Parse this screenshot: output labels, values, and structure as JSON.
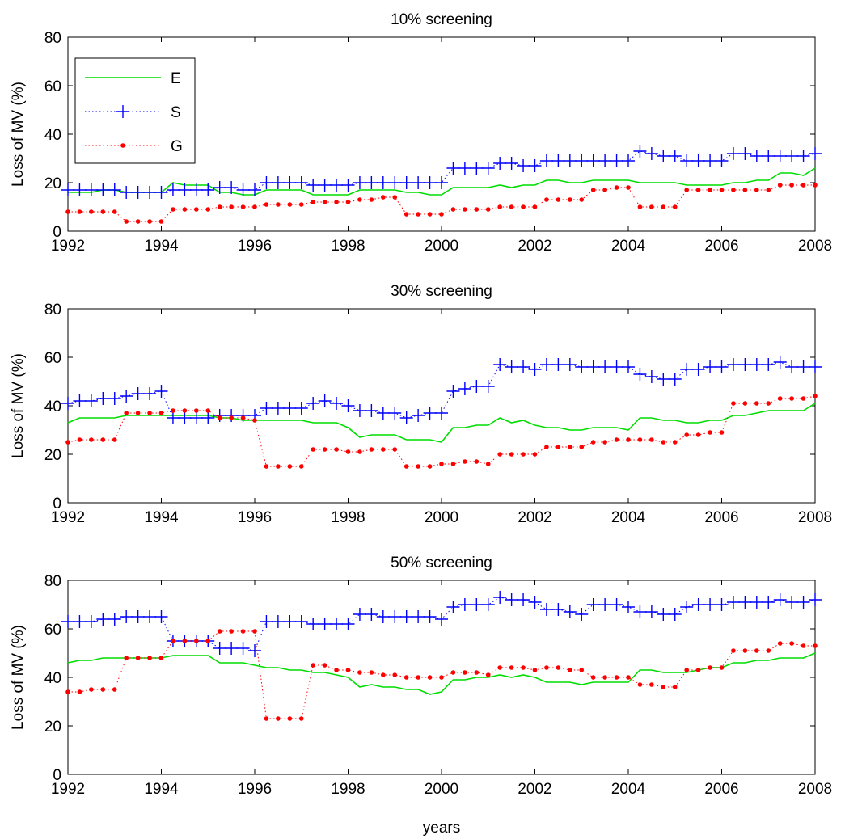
{
  "figure": {
    "xlabel": "years"
  },
  "chart_data": [
    {
      "type": "line",
      "title": "10% screening",
      "xlabel": "",
      "ylabel": "Loss of MV (%)",
      "xlim": [
        1992,
        2008
      ],
      "ylim": [
        0,
        80
      ],
      "xticks": [
        1992,
        1994,
        1996,
        1998,
        2000,
        2002,
        2004,
        2006,
        2008
      ],
      "yticks": [
        0,
        20,
        40,
        60,
        80
      ],
      "grid": false,
      "legend": {
        "placement": "top-left",
        "entries": [
          "E",
          "S",
          "G"
        ]
      },
      "series": [
        {
          "name": "E",
          "color": "#00dd00",
          "style": "solid",
          "values": [
            16,
            16,
            16,
            17,
            17,
            16,
            16,
            16,
            16,
            20,
            19,
            19,
            19,
            16,
            16,
            15,
            15,
            17,
            17,
            17,
            17,
            15,
            15,
            15,
            15,
            17,
            17,
            17,
            17,
            16,
            16,
            15,
            15,
            18,
            18,
            18,
            18,
            19,
            18,
            19,
            19,
            21,
            21,
            20,
            20,
            21,
            21,
            21,
            21,
            20,
            20,
            20,
            20,
            19,
            19,
            19,
            19,
            20,
            20,
            21,
            21,
            24,
            24,
            23,
            26
          ]
        },
        {
          "name": "S",
          "color": "#0000ff",
          "style": "dotted-plus",
          "values": [
            17,
            17,
            17,
            17,
            17,
            16,
            16,
            16,
            16,
            17,
            17,
            17,
            17,
            18,
            18,
            17,
            17,
            20,
            20,
            20,
            20,
            19,
            19,
            19,
            19,
            20,
            20,
            20,
            20,
            20,
            20,
            20,
            20,
            26,
            26,
            26,
            26,
            28,
            28,
            27,
            27,
            29,
            29,
            29,
            29,
            29,
            29,
            29,
            29,
            33,
            32,
            31,
            31,
            29,
            29,
            29,
            29,
            32,
            32,
            31,
            31,
            31,
            31,
            31,
            32
          ]
        },
        {
          "name": "G",
          "color": "#ff0000",
          "style": "dotted-dot",
          "values": [
            8,
            8,
            8,
            8,
            8,
            4,
            4,
            4,
            4,
            9,
            9,
            9,
            9,
            10,
            10,
            10,
            10,
            11,
            11,
            11,
            11,
            12,
            12,
            12,
            12,
            13,
            13,
            14,
            14,
            7,
            7,
            7,
            7,
            9,
            9,
            9,
            9,
            10,
            10,
            10,
            10,
            13,
            13,
            13,
            13,
            17,
            17,
            18,
            18,
            10,
            10,
            10,
            10,
            17,
            17,
            17,
            17,
            17,
            17,
            17,
            17,
            19,
            19,
            19,
            19
          ]
        }
      ]
    },
    {
      "type": "line",
      "title": "30% screening",
      "xlabel": "",
      "ylabel": "Loss of MV (%)",
      "xlim": [
        1992,
        2008
      ],
      "ylim": [
        0,
        80
      ],
      "xticks": [
        1992,
        1994,
        1996,
        1998,
        2000,
        2002,
        2004,
        2006,
        2008
      ],
      "yticks": [
        0,
        20,
        40,
        60,
        80
      ],
      "grid": false,
      "series": [
        {
          "name": "E",
          "color": "#00dd00",
          "style": "solid",
          "values": [
            33,
            35,
            35,
            35,
            35,
            36,
            36,
            36,
            36,
            36,
            36,
            36,
            36,
            35,
            35,
            34,
            34,
            34,
            34,
            34,
            34,
            33,
            33,
            33,
            31,
            27,
            28,
            28,
            28,
            26,
            26,
            26,
            25,
            31,
            31,
            32,
            32,
            35,
            33,
            34,
            32,
            31,
            31,
            30,
            30,
            31,
            31,
            31,
            30,
            35,
            35,
            34,
            34,
            33,
            33,
            34,
            34,
            36,
            36,
            37,
            38,
            38,
            38,
            38,
            41
          ]
        },
        {
          "name": "S",
          "color": "#0000ff",
          "style": "dotted-plus",
          "values": [
            41,
            42,
            42,
            43,
            43,
            44,
            45,
            45,
            46,
            35,
            35,
            35,
            35,
            36,
            36,
            36,
            36,
            39,
            39,
            39,
            39,
            41,
            42,
            41,
            40,
            38,
            38,
            37,
            37,
            35,
            36,
            37,
            37,
            46,
            47,
            48,
            48,
            57,
            56,
            56,
            55,
            57,
            57,
            57,
            56,
            56,
            56,
            56,
            56,
            53,
            52,
            51,
            51,
            55,
            55,
            56,
            56,
            57,
            57,
            57,
            57,
            58,
            56,
            56,
            56
          ]
        },
        {
          "name": "G",
          "color": "#ff0000",
          "style": "dotted-dot",
          "values": [
            25,
            26,
            26,
            26,
            26,
            37,
            37,
            37,
            37,
            38,
            38,
            38,
            38,
            35,
            35,
            35,
            34,
            15,
            15,
            15,
            15,
            22,
            22,
            22,
            21,
            21,
            22,
            22,
            22,
            15,
            15,
            15,
            16,
            16,
            17,
            17,
            16,
            20,
            20,
            20,
            20,
            23,
            23,
            23,
            23,
            25,
            25,
            26,
            26,
            26,
            26,
            25,
            25,
            28,
            28,
            29,
            29,
            41,
            41,
            41,
            41,
            43,
            43,
            43,
            44
          ]
        }
      ]
    },
    {
      "type": "line",
      "title": "50% screening",
      "xlabel": "years",
      "ylabel": "Loss of MV (%)",
      "xlim": [
        1992,
        2008
      ],
      "ylim": [
        0,
        80
      ],
      "xticks": [
        1992,
        1994,
        1996,
        1998,
        2000,
        2002,
        2004,
        2006,
        2008
      ],
      "yticks": [
        0,
        20,
        40,
        60,
        80
      ],
      "grid": false,
      "series": [
        {
          "name": "E",
          "color": "#00dd00",
          "style": "solid",
          "values": [
            46,
            47,
            47,
            48,
            48,
            48,
            48,
            48,
            48,
            49,
            49,
            49,
            49,
            46,
            46,
            46,
            45,
            44,
            44,
            43,
            43,
            42,
            42,
            41,
            40,
            36,
            37,
            36,
            36,
            35,
            35,
            33,
            34,
            39,
            39,
            40,
            40,
            41,
            40,
            41,
            40,
            38,
            38,
            38,
            37,
            38,
            38,
            38,
            38,
            43,
            43,
            42,
            42,
            42,
            43,
            44,
            44,
            46,
            46,
            47,
            47,
            48,
            48,
            48,
            50
          ]
        },
        {
          "name": "S",
          "color": "#0000ff",
          "style": "dotted-plus",
          "values": [
            63,
            63,
            63,
            64,
            64,
            65,
            65,
            65,
            65,
            55,
            55,
            55,
            55,
            52,
            52,
            52,
            51,
            63,
            63,
            63,
            63,
            62,
            62,
            62,
            62,
            66,
            66,
            65,
            65,
            65,
            65,
            65,
            64,
            69,
            70,
            70,
            70,
            73,
            72,
            72,
            71,
            68,
            68,
            67,
            66,
            70,
            70,
            70,
            69,
            67,
            67,
            66,
            66,
            69,
            70,
            70,
            70,
            71,
            71,
            71,
            71,
            72,
            71,
            71,
            72
          ]
        },
        {
          "name": "G",
          "color": "#ff0000",
          "style": "dotted-dot",
          "values": [
            34,
            34,
            35,
            35,
            35,
            48,
            48,
            48,
            48,
            55,
            55,
            55,
            55,
            59,
            59,
            59,
            59,
            23,
            23,
            23,
            23,
            45,
            45,
            43,
            43,
            42,
            42,
            41,
            41,
            40,
            40,
            40,
            40,
            42,
            42,
            42,
            41,
            44,
            44,
            44,
            43,
            44,
            44,
            43,
            43,
            40,
            40,
            40,
            40,
            37,
            37,
            36,
            36,
            43,
            43,
            44,
            44,
            51,
            51,
            51,
            51,
            54,
            54,
            53,
            53
          ]
        }
      ]
    }
  ]
}
